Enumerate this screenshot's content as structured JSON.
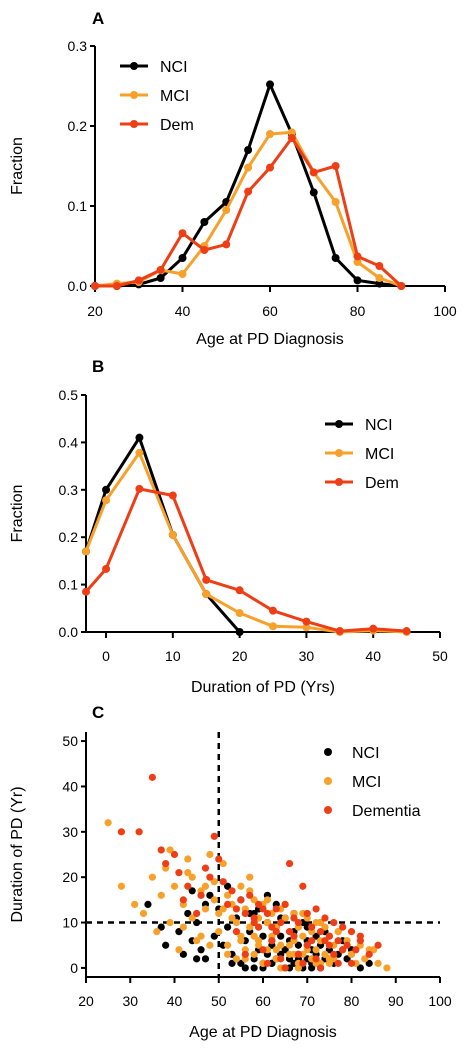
{
  "colors": {
    "NCI": "#000000",
    "MCI": "#f7a12b",
    "Dem": "#ee3e16",
    "Dementia": "#ee3e16"
  },
  "chart_data": [
    {
      "panel": "A",
      "type": "line",
      "xlabel": "Age at PD Diagnosis",
      "ylabel": "Fraction",
      "xlim": [
        20,
        100
      ],
      "ylim": [
        0,
        0.3
      ],
      "xticks": [
        "20",
        "40",
        "60",
        "80",
        "100"
      ],
      "yticks": [
        "0.0",
        "0.1",
        "0.2",
        "0.3"
      ],
      "legend_position": "top-left",
      "series": [
        {
          "name": "NCI",
          "color": "#000000",
          "x": [
            20,
            25,
            30,
            35,
            40,
            45,
            50,
            55,
            60,
            65,
            70,
            75,
            80,
            85,
            90
          ],
          "y": [
            0.0,
            0.0,
            0.002,
            0.01,
            0.035,
            0.08,
            0.105,
            0.17,
            0.252,
            0.19,
            0.117,
            0.035,
            0.007,
            0.003,
            0.0
          ]
        },
        {
          "name": "MCI",
          "color": "#f7a12b",
          "x": [
            20,
            25,
            30,
            35,
            40,
            45,
            50,
            55,
            60,
            65,
            70,
            75,
            80,
            85,
            90
          ],
          "y": [
            0.0,
            0.003,
            0.005,
            0.02,
            0.015,
            0.05,
            0.095,
            0.148,
            0.19,
            0.192,
            0.142,
            0.105,
            0.03,
            0.01,
            0.0
          ]
        },
        {
          "name": "Dem",
          "color": "#ee3e16",
          "x": [
            20,
            25,
            30,
            35,
            40,
            45,
            50,
            55,
            60,
            65,
            70,
            75,
            80,
            85,
            90
          ],
          "y": [
            0.0,
            0.0,
            0.007,
            0.02,
            0.066,
            0.045,
            0.052,
            0.118,
            0.148,
            0.185,
            0.142,
            0.15,
            0.037,
            0.025,
            0.0
          ]
        }
      ]
    },
    {
      "panel": "B",
      "type": "line",
      "xlabel": "Duration of PD (Yrs)",
      "ylabel": "Fraction",
      "xlim": [
        -3,
        50
      ],
      "ylim": [
        0,
        0.5
      ],
      "xticks": [
        "0",
        "10",
        "20",
        "30",
        "40",
        "50"
      ],
      "yticks": [
        "0.0",
        "0.1",
        "0.2",
        "0.3",
        "0.4",
        "0.5"
      ],
      "legend_position": "top-right",
      "series": [
        {
          "name": "NCI",
          "color": "#000000",
          "x": [
            -3,
            0,
            5,
            10,
            15,
            20
          ],
          "y": [
            0.17,
            0.3,
            0.41,
            0.205,
            0.08,
            0.0
          ]
        },
        {
          "name": "MCI",
          "color": "#f7a12b",
          "x": [
            -3,
            0,
            5,
            10,
            15,
            20,
            25,
            30,
            35,
            40,
            45
          ],
          "y": [
            0.17,
            0.278,
            0.378,
            0.205,
            0.08,
            0.04,
            0.012,
            0.01,
            0.0,
            0.003,
            0.0
          ]
        },
        {
          "name": "Dem",
          "color": "#ee3e16",
          "x": [
            -3,
            0,
            5,
            10,
            15,
            20,
            25,
            30,
            35,
            40,
            45
          ],
          "y": [
            0.085,
            0.133,
            0.302,
            0.288,
            0.11,
            0.088,
            0.045,
            0.022,
            0.002,
            0.007,
            0.002
          ]
        }
      ]
    },
    {
      "panel": "C",
      "type": "scatter",
      "xlabel": "Age at PD Diagnosis",
      "ylabel": "Duration of PD (Yr)",
      "xlim": [
        20,
        100
      ],
      "ylim": [
        -2,
        52
      ],
      "xticks": [
        "20",
        "30",
        "40",
        "50",
        "60",
        "70",
        "80",
        "90",
        "100"
      ],
      "yticks": [
        "0",
        "10",
        "20",
        "30",
        "40",
        "50"
      ],
      "legend_position": "top-right",
      "reference_lines": {
        "x": 50,
        "y": 10
      },
      "series": [
        {
          "name": "NCI",
          "color": "#000000",
          "x": [
            34,
            37,
            38,
            41,
            42,
            43,
            44,
            45,
            46,
            47,
            48,
            49,
            50,
            51,
            52,
            53,
            54,
            55,
            56,
            57,
            58,
            58,
            59,
            60,
            60,
            61,
            61,
            62,
            62,
            63,
            63,
            64,
            64,
            65,
            65,
            66,
            66,
            67,
            67,
            68,
            68,
            69,
            69,
            70,
            70,
            71,
            71,
            72,
            72,
            73,
            73,
            74,
            74,
            75,
            76,
            77,
            78,
            79,
            80,
            82,
            84,
            44,
            47,
            52,
            55,
            57,
            59,
            61,
            63,
            65,
            67,
            70,
            73,
            45,
            53,
            58,
            62,
            66,
            68,
            71,
            56,
            60,
            64,
            69
          ],
          "y": [
            14,
            9,
            5,
            8,
            3,
            12,
            6,
            10,
            4,
            2,
            16,
            7,
            13,
            5,
            9,
            3,
            11,
            1,
            6,
            8,
            2,
            12,
            4,
            7,
            0,
            10,
            3,
            5,
            1,
            9,
            2,
            7,
            11,
            4,
            0,
            6,
            2,
            8,
            1,
            5,
            3,
            10,
            0,
            6,
            2,
            4,
            1,
            7,
            3,
            5,
            0,
            2,
            8,
            4,
            1,
            3,
            6,
            2,
            4,
            0,
            1,
            17,
            14,
            18,
            15,
            12,
            13,
            16,
            14,
            11,
            12,
            9,
            10,
            2,
            1,
            0,
            1,
            0,
            2,
            0,
            0,
            1,
            3,
            1
          ]
        },
        {
          "name": "MCI",
          "color": "#f7a12b",
          "x": [
            25,
            28,
            31,
            33,
            35,
            36,
            37,
            38,
            39,
            40,
            41,
            42,
            43,
            44,
            45,
            46,
            47,
            48,
            49,
            50,
            50,
            51,
            52,
            52,
            53,
            54,
            54,
            55,
            55,
            56,
            56,
            57,
            57,
            58,
            58,
            59,
            59,
            60,
            60,
            61,
            61,
            62,
            62,
            63,
            63,
            64,
            64,
            65,
            65,
            66,
            66,
            67,
            67,
            68,
            68,
            69,
            69,
            70,
            70,
            71,
            71,
            72,
            72,
            73,
            73,
            74,
            74,
            75,
            75,
            76,
            77,
            78,
            79,
            80,
            81,
            82,
            83,
            85,
            86,
            88,
            39,
            43,
            47,
            49,
            51,
            53,
            57,
            61,
            65,
            69,
            73,
            77,
            42,
            46,
            48,
            52,
            56,
            60,
            64,
            68,
            72,
            76,
            80,
            84,
            55,
            59,
            63,
            67,
            71,
            75,
            44,
            58,
            62,
            66,
            70,
            74
          ],
          "y": [
            32,
            18,
            14,
            12,
            20,
            8,
            16,
            22,
            10,
            18,
            4,
            14,
            24,
            20,
            6,
            17,
            13,
            25,
            19,
            12,
            8,
            23,
            16,
            5,
            14,
            10,
            2,
            18,
            7,
            13,
            4,
            20,
            9,
            15,
            3,
            11,
            6,
            14,
            1,
            10,
            4,
            12,
            7,
            9,
            2,
            13,
            5,
            11,
            0,
            8,
            3,
            12,
            6,
            9,
            1,
            7,
            3,
            11,
            5,
            8,
            2,
            10,
            4,
            6,
            1,
            9,
            3,
            7,
            2,
            5,
            8,
            4,
            6,
            3,
            1,
            5,
            2,
            4,
            1,
            0,
            26,
            21,
            18,
            15,
            13,
            11,
            17,
            15,
            14,
            12,
            10,
            8,
            9,
            7,
            5,
            3,
            2,
            1,
            0,
            0,
            1,
            2,
            3,
            4,
            6,
            5,
            4,
            3,
            2,
            1,
            11,
            7,
            6,
            5,
            4,
            3
          ]
        },
        {
          "name": "Dementia",
          "color": "#ee3e16",
          "x": [
            28,
            32,
            35,
            37,
            38,
            40,
            41,
            42,
            43,
            45,
            46,
            47,
            48,
            49,
            50,
            51,
            52,
            53,
            54,
            55,
            56,
            57,
            58,
            59,
            60,
            61,
            62,
            63,
            64,
            65,
            66,
            67,
            68,
            69,
            70,
            71,
            72,
            73,
            74,
            75,
            76,
            77,
            78,
            79,
            80,
            81,
            82,
            84,
            86,
            54,
            58,
            62,
            66,
            70,
            74,
            78,
            82,
            56,
            60,
            64,
            68,
            72,
            76,
            80,
            61,
            65,
            69,
            73,
            77,
            59,
            63,
            67,
            71,
            75
          ],
          "y": [
            30,
            30,
            42,
            26,
            23,
            25,
            21,
            15,
            18,
            12,
            16,
            22,
            20,
            29,
            24,
            19,
            14,
            17,
            13,
            15,
            12,
            16,
            11,
            14,
            13,
            12,
            9,
            13,
            10,
            14,
            23,
            11,
            10,
            18,
            12,
            9,
            13,
            8,
            11,
            7,
            10,
            6,
            9,
            5,
            8,
            4,
            7,
            3,
            5,
            8,
            10,
            6,
            8,
            5,
            6,
            4,
            6,
            3,
            4,
            2,
            3,
            2,
            3,
            1,
            1,
            0,
            1,
            0,
            1,
            9,
            8,
            7,
            6,
            5
          ]
        }
      ]
    }
  ]
}
